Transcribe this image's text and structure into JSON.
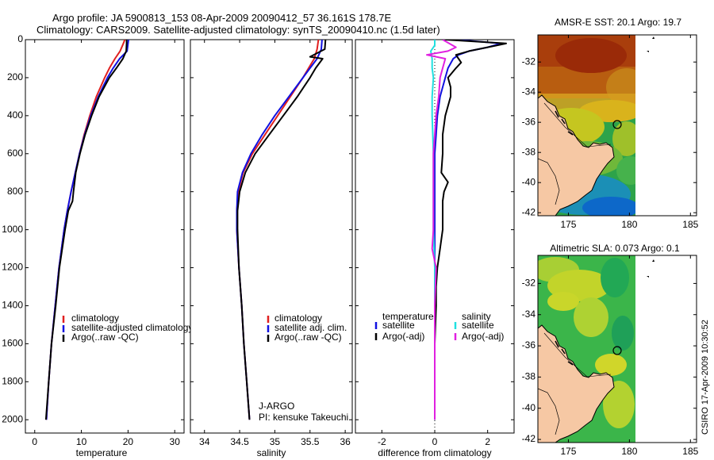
{
  "header": {
    "line1": "Argo profile: JA 5900813_153 08-Apr-2009 20090412_57 36.161S 178.7E",
    "line2": "Climatology: CARS2009. Satellite-adjusted climatology: synTS_20090410.nc (1.5d later)"
  },
  "side_text": "CSIRO 17-Apr-2009 10:30:52",
  "colors": {
    "climatology": "#e02020",
    "satellite": "#1010e0",
    "argo": "#000000",
    "salinity_diff_argo": "#e020e0",
    "salinity_diff_sat": "#20e0e0",
    "land": "#f6c8a4"
  },
  "chart_data": [
    {
      "type": "line",
      "id": "temperature",
      "xlabel": "temperature",
      "ylabel": "",
      "xlim": [
        -2,
        32
      ],
      "ylim": [
        2070,
        0
      ],
      "xticks": [
        0,
        10,
        20,
        30
      ],
      "yticks": [
        0,
        200,
        400,
        600,
        800,
        1000,
        1200,
        1400,
        1600,
        1800,
        2000
      ],
      "legend": [
        "climatology",
        "satellite-adjusted climatology",
        "Argo(..raw -QC)"
      ],
      "annotations": [],
      "series": [
        {
          "name": "climatology",
          "color": "#e02020",
          "depth": [
            0,
            20,
            60,
            100,
            150,
            200,
            300,
            400,
            500,
            600,
            700,
            800,
            900,
            1000,
            1200,
            1400,
            1600,
            1800,
            2000
          ],
          "values": [
            19.3,
            19.0,
            18.3,
            17.2,
            16.0,
            15.0,
            13.2,
            11.8,
            10.6,
            9.6,
            8.7,
            7.8,
            7.0,
            6.3,
            5.2,
            4.4,
            3.6,
            3.0,
            2.5
          ]
        },
        {
          "name": "satellite-adjusted climatology",
          "color": "#1010e0",
          "depth": [
            0,
            20,
            60,
            100,
            150,
            200,
            300,
            400,
            500,
            600,
            700,
            800,
            900,
            1000,
            1200,
            1400,
            1600,
            1800,
            2000
          ],
          "values": [
            20.1,
            20.0,
            19.8,
            18.2,
            16.8,
            15.6,
            13.6,
            12.0,
            10.7,
            9.6,
            8.7,
            7.8,
            7.0,
            6.3,
            5.2,
            4.4,
            3.6,
            3.0,
            2.5
          ]
        },
        {
          "name": "Argo(..raw -QC)",
          "color": "#000000",
          "depth": [
            0,
            20,
            60,
            100,
            150,
            200,
            300,
            400,
            500,
            600,
            700,
            800,
            850,
            900,
            1000,
            1200,
            1400,
            1600,
            1800,
            2000
          ],
          "values": [
            19.7,
            19.7,
            19.6,
            18.9,
            17.5,
            16.0,
            13.8,
            12.2,
            10.8,
            9.7,
            8.8,
            8.3,
            8.1,
            7.2,
            6.5,
            5.3,
            4.5,
            3.6,
            3.0,
            2.4
          ]
        }
      ]
    },
    {
      "type": "line",
      "id": "salinity",
      "xlabel": "salinity",
      "ylabel": "",
      "xlim": [
        33.8,
        36.1
      ],
      "ylim": [
        2070,
        0
      ],
      "xticks": [
        34,
        34.5,
        35,
        35.5,
        36
      ],
      "yticks": [
        0,
        200,
        400,
        600,
        800,
        1000,
        1200,
        1400,
        1600,
        1800,
        2000
      ],
      "legend": [
        "climatology",
        "satellite adj. clim.",
        "Argo(..raw -QC)"
      ],
      "annotations": [
        "J-ARGO",
        "PI: kensuke Takeuchi"
      ],
      "series": [
        {
          "name": "climatology",
          "color": "#e02020",
          "depth": [
            0,
            50,
            100,
            150,
            200,
            300,
            400,
            500,
            600,
            700,
            800,
            900,
            1000,
            1200,
            1400,
            1600,
            1800,
            2000
          ],
          "values": [
            35.62,
            35.6,
            35.56,
            35.48,
            35.4,
            35.22,
            35.04,
            34.86,
            34.68,
            34.55,
            34.48,
            34.46,
            34.46,
            34.49,
            34.53,
            34.56,
            34.6,
            34.64
          ]
        },
        {
          "name": "satellite adj. clim.",
          "color": "#1010e0",
          "depth": [
            0,
            50,
            100,
            150,
            200,
            300,
            400,
            500,
            600,
            700,
            800,
            900,
            1000,
            1200,
            1400,
            1600,
            1800,
            2000
          ],
          "values": [
            35.67,
            35.66,
            35.6,
            35.5,
            35.4,
            35.2,
            35.0,
            34.82,
            34.66,
            34.54,
            34.47,
            34.46,
            34.46,
            34.49,
            34.53,
            34.56,
            34.6,
            34.64
          ]
        },
        {
          "name": "Argo(..raw -QC)",
          "color": "#000000",
          "depth": [
            0,
            50,
            90,
            100,
            150,
            200,
            300,
            400,
            500,
            600,
            700,
            800,
            900,
            1000,
            1200,
            1400,
            1600,
            1800,
            2000
          ],
          "values": [
            35.72,
            35.71,
            35.5,
            35.68,
            35.58,
            35.5,
            35.32,
            35.12,
            34.92,
            34.72,
            34.58,
            34.5,
            34.47,
            34.47,
            34.49,
            34.53,
            34.56,
            34.6,
            34.64
          ]
        }
      ]
    },
    {
      "type": "line",
      "id": "difference",
      "xlabel": "difference from climatology",
      "ylabel": "",
      "xlim": [
        -3.0,
        3.0
      ],
      "ylim": [
        2070,
        0
      ],
      "xticks": [
        -2,
        0,
        2
      ],
      "yticks": [
        0,
        200,
        400,
        600,
        800,
        1000,
        1200,
        1400,
        1600,
        1800,
        2000
      ],
      "legend_titles": [
        "temperature",
        "salinity"
      ],
      "legend": [
        "satellite",
        "Argo(-adj)",
        "satellite",
        "Argo(-adj)"
      ],
      "annotations": [],
      "series": [
        {
          "name": "temperature satellite",
          "color": "#1010e0",
          "depth": [
            0,
            20,
            40,
            60,
            80,
            100,
            150,
            200,
            300,
            400,
            500,
            600,
            800,
            1000,
            1200,
            1500,
            2000
          ],
          "values": [
            0.8,
            2.5,
            2.0,
            1.3,
            0.9,
            0.7,
            0.5,
            0.4,
            0.2,
            0.1,
            0.05,
            0.0,
            0.0,
            0.0,
            0.0,
            0.0,
            0.0
          ]
        },
        {
          "name": "temperature Argo(-adj)",
          "color": "#000000",
          "depth": [
            0,
            20,
            40,
            60,
            80,
            100,
            120,
            150,
            200,
            250,
            300,
            400,
            500,
            600,
            700,
            750,
            800,
            850,
            900,
            1000,
            1100,
            1200,
            1300,
            1400,
            1600,
            2000
          ],
          "values": [
            0.4,
            2.7,
            2.0,
            1.3,
            0.8,
            0.9,
            1.0,
            0.8,
            0.5,
            0.6,
            0.6,
            0.4,
            0.3,
            0.3,
            0.25,
            0.5,
            0.35,
            0.3,
            0.3,
            0.3,
            0.2,
            0.1,
            0.05,
            0.05,
            0.0,
            0.0
          ]
        },
        {
          "name": "salinity satellite",
          "color": "#20e0e0",
          "depth": [
            0,
            30,
            60,
            100,
            150,
            200,
            300,
            400,
            600,
            800,
            1000,
            1200,
            1600,
            2000
          ],
          "values": [
            0.0,
            0.0,
            -0.15,
            -0.1,
            -0.1,
            -0.05,
            -0.1,
            -0.1,
            -0.05,
            -0.05,
            -0.05,
            0.0,
            0.0,
            0.0
          ]
        },
        {
          "name": "salinity Argo(-adj)",
          "color": "#e020e0",
          "depth": [
            0,
            40,
            60,
            80,
            100,
            150,
            200,
            300,
            400,
            500,
            600,
            800,
            1000,
            1100,
            1200,
            1400,
            1600,
            2000
          ],
          "values": [
            0.3,
            0.8,
            0.5,
            -0.3,
            0.4,
            0.3,
            0.2,
            0.15,
            0.05,
            0.0,
            -0.05,
            -0.05,
            -0.05,
            -0.1,
            0.05,
            0.0,
            0.0,
            0.0
          ]
        }
      ]
    },
    {
      "type": "heatmap",
      "id": "sst_map",
      "title": "AMSR-E SST: 20.1  Argo: 19.7",
      "xticks": [
        175,
        180,
        185
      ],
      "yticks": [
        -32,
        -34,
        -36,
        -38,
        -40,
        -42
      ],
      "xlim": [
        172.5,
        185.5
      ],
      "ylim": [
        -42.2,
        -30.2
      ],
      "marker": {
        "lon": 178.7,
        "lat": -36.161
      }
    },
    {
      "type": "heatmap",
      "id": "sla_map",
      "title": "Altimetric SLA: 0.073  Argo: 0.1",
      "xticks": [
        175,
        180,
        185
      ],
      "yticks": [
        -32,
        -34,
        -36,
        -38,
        -40,
        -42
      ],
      "xlim": [
        172.5,
        185.5
      ],
      "ylim": [
        -42.2,
        -30.2
      ],
      "marker": {
        "lon": 178.7,
        "lat": -36.161
      }
    }
  ]
}
